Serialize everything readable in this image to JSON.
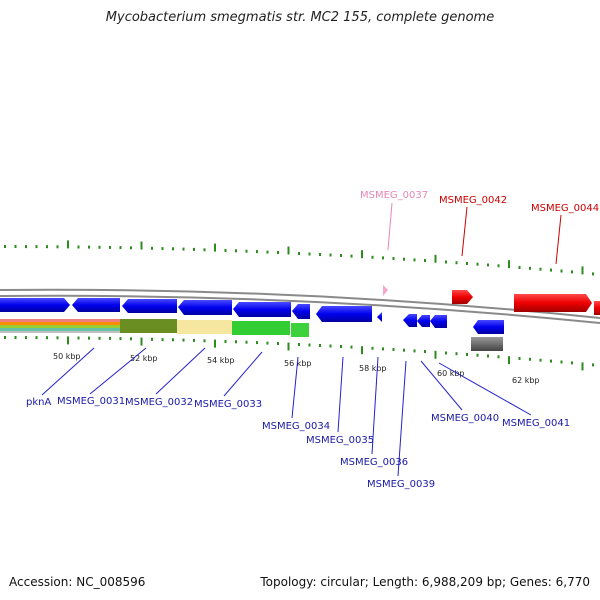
{
  "title": "Mycobacterium smegmatis str. MC2 155, complete genome",
  "footer": {
    "accession": "Accession: NC_008596",
    "stats": "Topology: circular; Length: 6,988,209 bp; Genes: 6,770"
  },
  "colors": {
    "forward_gene": "#0000ee",
    "reverse_gene": "#ee0000",
    "pseudo_gene": "#f4a6cc",
    "label_blue": "#1a1aa6",
    "label_red": "#cc0000",
    "label_pink": "#ea86b6",
    "tick": "#2e8b1f",
    "backbone": "#888888"
  },
  "scale_labels": [
    "50 kbp",
    "52 kbp",
    "54 kbp",
    "56 kbp",
    "58 kbp",
    "60 kbp",
    "62 kbp"
  ],
  "gene_labels_below": [
    "pknA",
    "MSMEG_0031",
    "MSMEG_0032",
    "MSMEG_0033",
    "MSMEG_0034",
    "MSMEG_0035",
    "MSMEG_0036",
    "MSMEG_0039",
    "MSMEG_0040",
    "MSMEG_0041"
  ],
  "gene_labels_above": [
    {
      "text": "MSMEG_0037",
      "kind": "pseudo"
    },
    {
      "text": "MSMEG_0042",
      "kind": "reverse"
    },
    {
      "text": "MSMEG_0044",
      "kind": "reverse"
    }
  ]
}
